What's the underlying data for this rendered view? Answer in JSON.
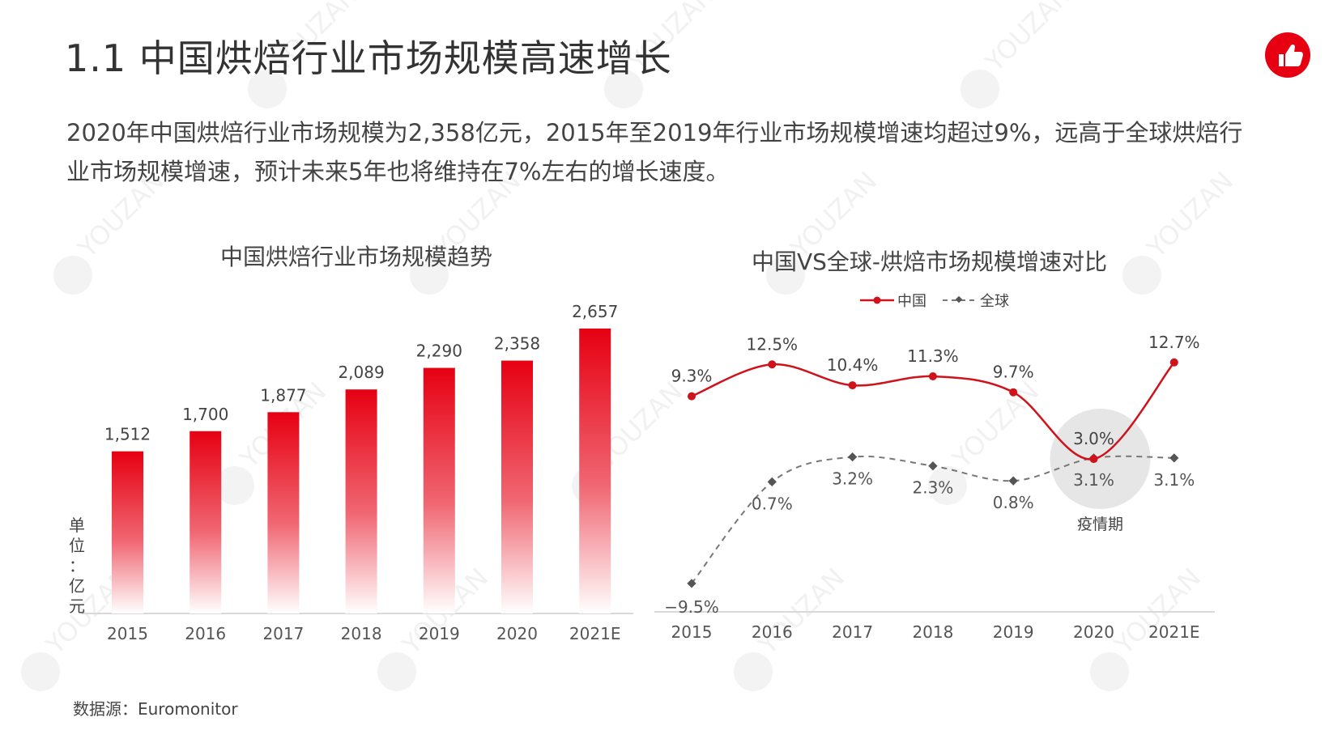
{
  "page": {
    "title": "1.1 中国烘焙行业市场规模高速增长",
    "description": "2020年中国烘焙行业市场规模为2,358亿元，2015年至2019年行业市场规模增速均超过9%，远高于全球烘焙行业市场规模增速，预计未来5年也将维持在7%左右的增长速度。",
    "source": "数据源：Euromonitor",
    "logo_icon": "thumbs-up-icon",
    "watermark_text": "YOUZAN",
    "accent_color": "#e60012"
  },
  "chart_data": [
    {
      "type": "bar",
      "title": "中国烘焙行业市场规模趋势",
      "categories": [
        "2015",
        "2016",
        "2017",
        "2018",
        "2019",
        "2020",
        "2021E"
      ],
      "values": [
        1512,
        1700,
        1877,
        2089,
        2290,
        2358,
        2657
      ],
      "value_labels": [
        "1,512",
        "1,700",
        "1,877",
        "2,089",
        "2,290",
        "2,358",
        "2,657"
      ],
      "unit_label": "单位：亿元",
      "bar_color": "#e60012",
      "grid": false
    },
    {
      "type": "line",
      "title": "中国VS全球-烘焙市场规模增速对比",
      "categories": [
        "2015",
        "2016",
        "2017",
        "2018",
        "2019",
        "2020",
        "2021E"
      ],
      "legend_position": "top",
      "series": [
        {
          "name": "中国",
          "values": [
            9.3,
            12.5,
            10.4,
            11.3,
            9.7,
            3.0,
            12.7
          ],
          "labels": [
            "9.3%",
            "12.5%",
            "10.4%",
            "11.3%",
            "9.7%",
            "3.0%",
            "12.7%"
          ],
          "color": "#d0121b",
          "style": "solid"
        },
        {
          "name": "全球",
          "values": [
            -9.5,
            0.7,
            3.2,
            2.3,
            0.8,
            3.1,
            3.1
          ],
          "labels": [
            "−9.5%",
            "0.7%",
            "3.2%",
            "2.3%",
            "0.8%",
            "3.1%",
            "3.1%"
          ],
          "color": "#777777",
          "style": "dashed"
        }
      ],
      "annotation": {
        "label": "疫情期",
        "category": "2020"
      },
      "grid": false
    }
  ]
}
